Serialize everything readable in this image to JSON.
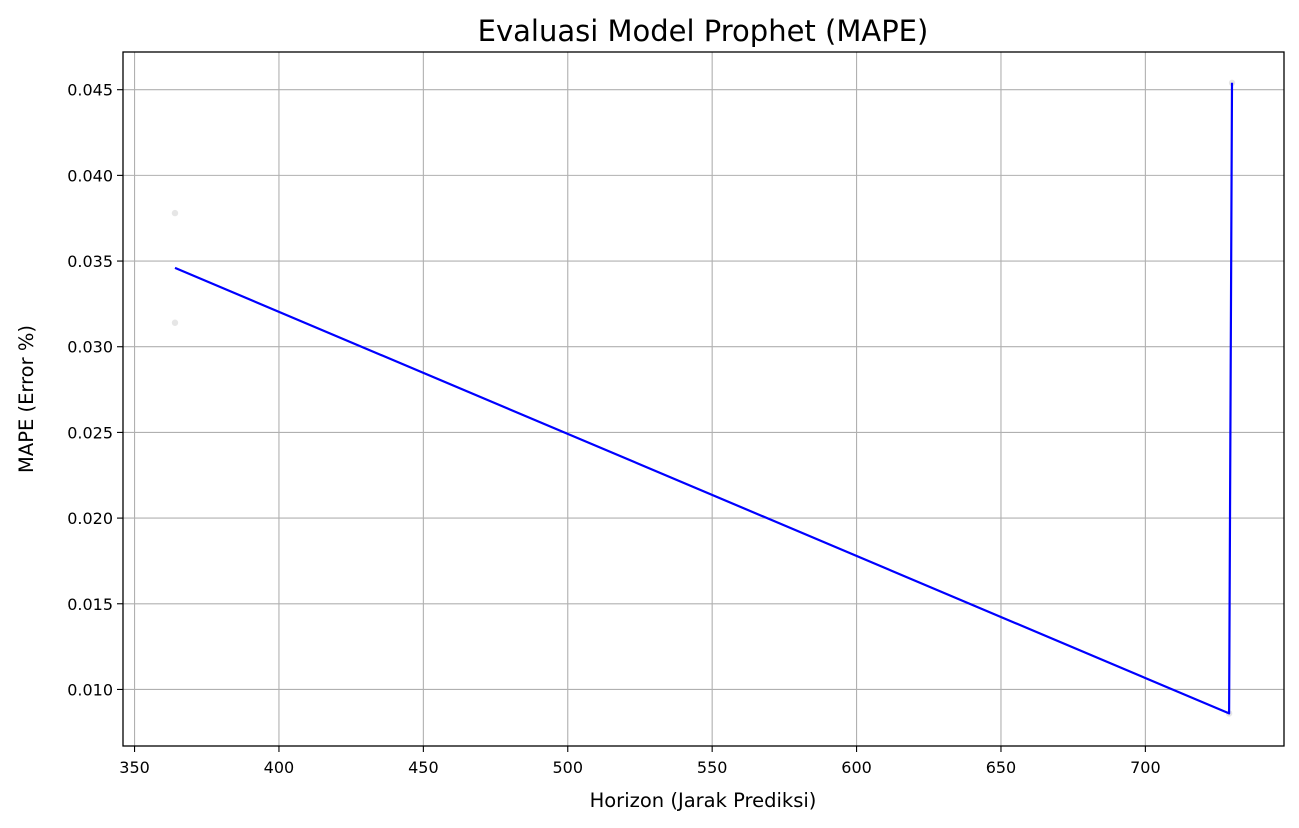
{
  "chart_data": {
    "type": "line",
    "title": "Evaluasi Model Prophet (MAPE)",
    "xlabel": "Horizon (Jarak Prediksi)",
    "ylabel": "MAPE (Error %)",
    "xlim": [
      346,
      748
    ],
    "ylim": [
      0.0067,
      0.0472
    ],
    "xticks": [
      350,
      400,
      450,
      500,
      550,
      600,
      650,
      700
    ],
    "yticks": [
      0.01,
      0.015,
      0.02,
      0.025,
      0.03,
      0.035,
      0.04,
      0.045
    ],
    "xtick_labels": [
      "350",
      "400",
      "450",
      "500",
      "550",
      "600",
      "650",
      "700"
    ],
    "ytick_labels": [
      "0.010",
      "0.015",
      "0.020",
      "0.025",
      "0.030",
      "0.035",
      "0.040",
      "0.045"
    ],
    "grid": true,
    "series": [
      {
        "color": "#0000ff",
        "x": [
          364,
          729,
          730
        ],
        "y": [
          0.0346,
          0.0086,
          0.0454
        ]
      }
    ],
    "scatter_points": {
      "color": "#e6e6e6",
      "x": [
        364,
        364,
        729,
        730
      ],
      "y": [
        0.0378,
        0.0314,
        0.0086,
        0.0454
      ]
    }
  }
}
